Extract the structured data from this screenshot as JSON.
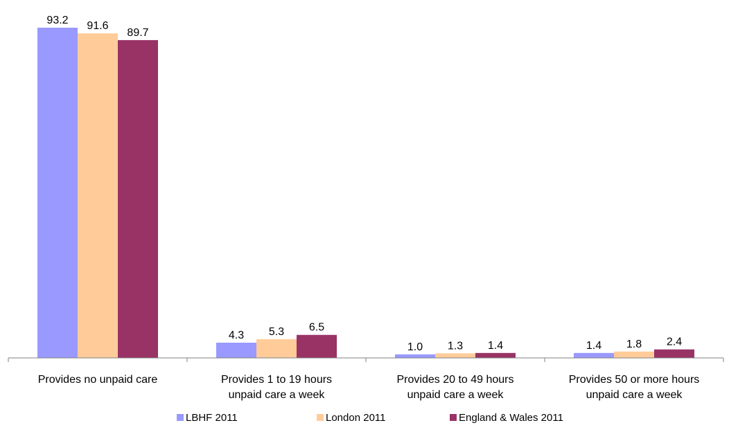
{
  "chart_data": {
    "type": "bar",
    "categories": [
      [
        "Provides no unpaid care"
      ],
      [
        "Provides 1 to 19 hours",
        "unpaid care a week"
      ],
      [
        "Provides 20 to 49 hours",
        "unpaid care a week"
      ],
      [
        "Provides 50 or more hours",
        "unpaid care a week"
      ]
    ],
    "series": [
      {
        "name": "LBHF 2011",
        "color": "#9999ff",
        "values": [
          93.2,
          4.3,
          1.0,
          1.4
        ],
        "labels": [
          "93.2",
          "4.3",
          "1.0",
          "1.4"
        ]
      },
      {
        "name": "London 2011",
        "color": "#ffcc99",
        "values": [
          91.6,
          5.3,
          1.3,
          1.8
        ],
        "labels": [
          "91.6",
          "5.3",
          "1.3",
          "1.8"
        ]
      },
      {
        "name": "England & Wales 2011",
        "color": "#993366",
        "values": [
          89.7,
          6.5,
          1.4,
          2.4
        ],
        "labels": [
          "89.7",
          "6.5",
          "1.4",
          "2.4"
        ]
      }
    ],
    "ylim": [
      0,
      100
    ],
    "grid": false,
    "legend": "bottom"
  }
}
